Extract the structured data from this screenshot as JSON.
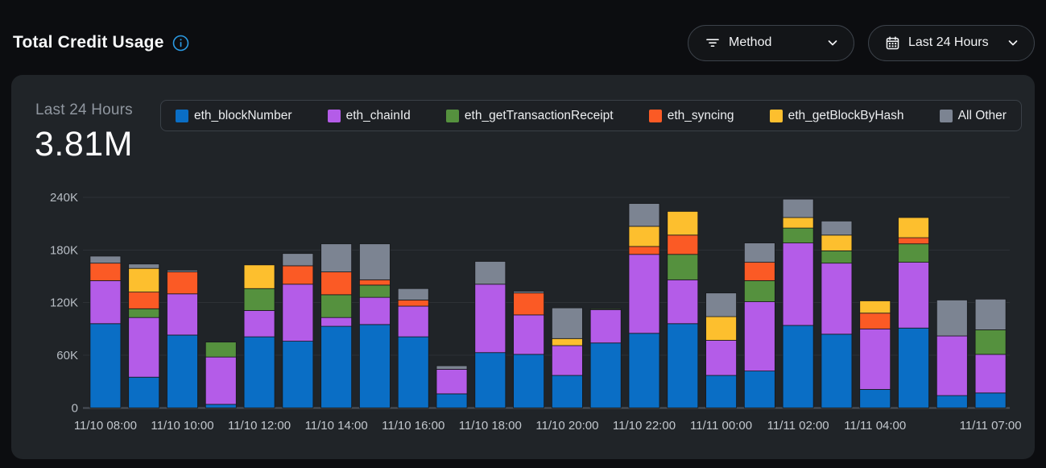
{
  "header": {
    "title": "Total Credit Usage",
    "filters": {
      "method": {
        "label": "Method",
        "icon": "filter-icon"
      },
      "time_range": {
        "label": "Last 24 Hours",
        "icon": "calendar-icon"
      }
    }
  },
  "panel": {
    "range_label": "Last 24 Hours",
    "total": "3.81M"
  },
  "colors": {
    "page_bg": "#0c0d10",
    "panel_bg": "#202428",
    "legend_bg": "#1d2024",
    "legend_border": "#3a4047",
    "grid": "#2d3136",
    "axis_line": "#4a5057",
    "tick_text": "#b7bdc4",
    "accent_info": "#2b9ae3"
  },
  "chart_data": {
    "type": "bar",
    "stacked": true,
    "title": "Total Credit Usage - Last 24 Hours",
    "values_unit": "thousands of credits",
    "ylim_k": [
      0,
      240
    ],
    "ytick_values_k": [
      0,
      60,
      120,
      180,
      240
    ],
    "ytick_labels": [
      "0",
      "60K",
      "120K",
      "180K",
      "240K"
    ],
    "grid": "horizontal",
    "legend_position": "top",
    "categories": [
      "11/10 08:00",
      "11/10 09:00",
      "11/10 10:00",
      "11/10 11:00",
      "11/10 12:00",
      "11/10 13:00",
      "11/10 14:00",
      "11/10 15:00",
      "11/10 16:00",
      "11/10 17:00",
      "11/10 18:00",
      "11/10 19:00",
      "11/10 20:00",
      "11/10 21:00",
      "11/10 22:00",
      "11/10 23:00",
      "11/11 00:00",
      "11/11 01:00",
      "11/11 02:00",
      "11/11 03:00",
      "11/11 04:00",
      "11/11 05:00",
      "11/11 06:00",
      "11/11 07:00"
    ],
    "x_tick_labels": [
      "11/10 08:00",
      "",
      "11/10 10:00",
      "",
      "11/10 12:00",
      "",
      "11/10 14:00",
      "",
      "11/10 16:00",
      "",
      "11/10 18:00",
      "",
      "11/10 20:00",
      "",
      "11/10 22:00",
      "",
      "11/11 00:00",
      "",
      "11/11 02:00",
      "",
      "11/11 04:00",
      "",
      "",
      "11/11 07:00"
    ],
    "series": [
      {
        "name": "eth_blockNumber",
        "color": "#0a6ec5",
        "values_k": [
          96,
          35,
          83,
          4,
          81,
          76,
          93,
          95,
          81,
          16,
          63,
          61,
          37,
          74,
          85,
          96,
          37,
          42,
          94,
          84,
          21,
          91,
          14,
          17
        ]
      },
      {
        "name": "eth_chainId",
        "color": "#b45ce8",
        "values_k": [
          49,
          68,
          47,
          54,
          30,
          65,
          10,
          31,
          35,
          28,
          78,
          45,
          34,
          38,
          90,
          50,
          40,
          79,
          94,
          81,
          69,
          75,
          68,
          44
        ]
      },
      {
        "name": "eth_getTransactionReceipt",
        "color": "#55913e",
        "values_k": [
          0,
          10,
          0,
          17,
          25,
          0,
          26,
          14,
          0,
          0,
          0,
          0,
          0,
          1,
          0,
          29,
          0,
          24,
          17,
          14,
          0,
          21,
          0,
          28
        ]
      },
      {
        "name": "eth_syncing",
        "color": "#fb5a25",
        "values_k": [
          20,
          19,
          25,
          0,
          0,
          21,
          26,
          6,
          7,
          0,
          0,
          25,
          0,
          0,
          9,
          22,
          0,
          21,
          0,
          0,
          18,
          7,
          0,
          0
        ]
      },
      {
        "name": "eth_getBlockByHash",
        "color": "#fdbf2e",
        "values_k": [
          0,
          27,
          0,
          0,
          27,
          0,
          0,
          0,
          0,
          0,
          0,
          0,
          8,
          0,
          23,
          27,
          27,
          0,
          12,
          18,
          14,
          23,
          0,
          0
        ]
      },
      {
        "name": "All Other",
        "color": "#7c8492",
        "values_k": [
          8,
          5,
          2,
          0,
          0,
          14,
          32,
          41,
          13,
          4,
          26,
          2,
          35,
          0,
          26,
          0,
          27,
          22,
          21,
          16,
          0,
          0,
          41,
          35
        ]
      }
    ]
  }
}
